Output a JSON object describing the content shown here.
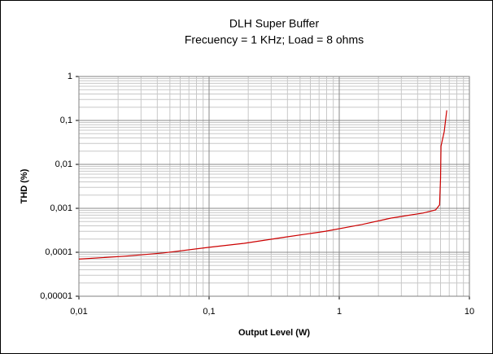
{
  "chart_data": {
    "type": "line",
    "title": "DLH Super Buffer",
    "subtitle": "Frecuency = 1 KHz; Load = 8 ohms",
    "x_label": "Output Level (W)",
    "y_label": "THD (%)",
    "x": [
      0.01,
      0.022,
      0.044,
      0.1,
      0.186,
      0.38,
      0.78,
      1.5,
      2.5,
      4.4,
      5.5,
      5.9,
      6.0,
      6.05,
      6.4,
      6.7
    ],
    "series": [
      {
        "color": "#cc0000",
        "values": [
          7e-05,
          8.1e-05,
          9.6e-05,
          0.00013,
          0.00016,
          0.00022,
          0.0003,
          0.00043,
          0.0006,
          0.00078,
          0.00092,
          0.0012,
          0.0047,
          0.026,
          0.055,
          0.17
        ]
      }
    ],
    "xlim": [
      0.01,
      10
    ],
    "ylim": [
      1e-05,
      1
    ],
    "xticks": [
      {
        "value": 0.01,
        "label": "0,01"
      },
      {
        "value": 0.1,
        "label": "0,1"
      },
      1,
      10
    ],
    "yticks": [
      {
        "value": 1e-05,
        "label": "0,00001"
      },
      {
        "value": 0.0001,
        "label": "0,0001"
      },
      {
        "value": 0.001,
        "label": "0,001"
      },
      {
        "value": 0.01,
        "label": "0,01"
      },
      {
        "value": 0.1,
        "label": "0,1"
      },
      1
    ],
    "x_log": true,
    "y_log": true,
    "grid": true,
    "minor_grid": true
  }
}
